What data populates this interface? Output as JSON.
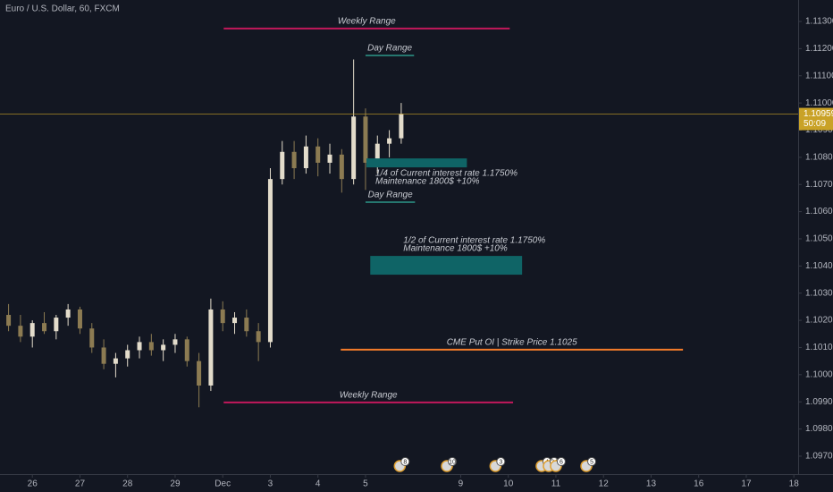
{
  "chart_data": {
    "type": "candlestick",
    "title": "Euro / U.S. Dollar, 60, FXCM",
    "up_color": "#e3dccb",
    "down_color": "#8c7b52",
    "x": [
      -0.5,
      -0.25,
      0,
      0.25,
      0.5,
      0.75,
      1,
      1.25,
      1.5,
      1.75,
      2,
      2.25,
      2.5,
      2.75,
      3,
      3.25,
      3.5,
      3.75,
      4,
      4.25,
      4.5,
      4.75,
      5,
      5.25,
      5.5,
      5.75,
      6,
      6.25,
      6.5,
      6.75,
      7,
      7.25,
      7.5,
      7.75
    ],
    "open": [
      1.1022,
      1.1018,
      1.1014,
      1.1019,
      1.1016,
      1.1021,
      1.1024,
      1.1017,
      1.101,
      1.1004,
      1.1006,
      1.1009,
      1.1012,
      1.1009,
      1.1011,
      1.1013,
      1.1005,
      1.0996,
      1.1024,
      1.1019,
      1.1021,
      1.1016,
      1.1012,
      1.1072,
      1.1082,
      1.1076,
      1.1084,
      1.1078,
      1.1081,
      1.1072,
      1.1095,
      1.1078,
      1.1085,
      1.1087
    ],
    "high": [
      1.1026,
      1.1022,
      1.102,
      1.1023,
      1.1022,
      1.1026,
      1.1025,
      1.1019,
      1.1013,
      1.1008,
      1.1011,
      1.1014,
      1.1015,
      1.1013,
      1.1015,
      1.1014,
      1.1008,
      1.1028,
      1.1027,
      1.1023,
      1.1024,
      1.1019,
      1.1076,
      1.1086,
      1.1086,
      1.1088,
      1.1087,
      1.1085,
      1.1083,
      1.1116,
      1.1098,
      1.1088,
      1.109,
      1.11
    ],
    "low": [
      1.1016,
      1.1012,
      1.101,
      1.1015,
      1.1013,
      1.1018,
      1.1015,
      1.1008,
      1.1002,
      1.0999,
      1.1003,
      1.1006,
      1.1007,
      1.1005,
      1.1008,
      1.1003,
      1.0988,
      1.0994,
      1.1016,
      1.1015,
      1.1014,
      1.1005,
      1.101,
      1.107,
      1.1072,
      1.1074,
      1.1073,
      1.1074,
      1.1067,
      1.107,
      1.1068,
      1.1074,
      1.108,
      1.1085
    ],
    "close": [
      1.1018,
      1.1014,
      1.1019,
      1.1016,
      1.1021,
      1.1024,
      1.1017,
      1.101,
      1.1004,
      1.1006,
      1.1009,
      1.1012,
      1.1009,
      1.1011,
      1.1013,
      1.1005,
      1.0996,
      1.1024,
      1.1019,
      1.1021,
      1.1016,
      1.1012,
      1.1072,
      1.1082,
      1.1076,
      1.1084,
      1.1078,
      1.1081,
      1.1072,
      1.1095,
      1.1078,
      1.1085,
      1.1087,
      1.1096
    ],
    "xlim": [
      -0.68,
      16.09
    ],
    "ylim": [
      1.09634,
      1.11379
    ],
    "xticks": [
      {
        "value": 0,
        "label": "26"
      },
      {
        "value": 1,
        "label": "27"
      },
      {
        "value": 2,
        "label": "28"
      },
      {
        "value": 3,
        "label": "29"
      },
      {
        "value": 4,
        "label": "Dec"
      },
      {
        "value": 5,
        "label": "3"
      },
      {
        "value": 6,
        "label": "4"
      },
      {
        "value": 7,
        "label": "5"
      },
      9,
      10,
      11,
      12,
      13,
      {
        "value": 14,
        "label": "16"
      },
      {
        "value": 15,
        "label": "17"
      },
      {
        "value": 16,
        "label": "18"
      }
    ],
    "yticks": [
      {
        "value": 1.113,
        "label": "1.11300"
      },
      {
        "value": 1.112,
        "label": "1.11200"
      },
      {
        "value": 1.111,
        "label": "1.11100"
      },
      {
        "value": 1.11,
        "label": "1.11000"
      },
      {
        "value": 1.109,
        "label": "1.10900"
      },
      {
        "value": 1.108,
        "label": "1.10800"
      },
      {
        "value": 1.107,
        "label": "1.10700"
      },
      {
        "value": 1.106,
        "label": "1.10600"
      },
      {
        "value": 1.105,
        "label": "1.10500"
      },
      {
        "value": 1.104,
        "label": "1.10400"
      },
      {
        "value": 1.103,
        "label": "1.10300"
      },
      {
        "value": 1.102,
        "label": "1.10200"
      },
      {
        "value": 1.101,
        "label": "1.10100"
      },
      {
        "value": 1.1,
        "label": "1.10000"
      },
      {
        "value": 1.099,
        "label": "1.09900"
      },
      {
        "value": 1.098,
        "label": "1.09800"
      },
      {
        "value": 1.097,
        "label": "1.09700"
      }
    ],
    "last_price": {
      "value": 1.10959,
      "label": "1.10959",
      "countdown": "50:09",
      "color": "#c9a227"
    },
    "annotations": [
      {
        "kind": "line",
        "y": 1.11274,
        "x": [
          4.02,
          10.03
        ],
        "color": "#c2185b",
        "labels": [
          "Weekly Range"
        ],
        "label_pos": "above"
      },
      {
        "kind": "line",
        "y": 1.11175,
        "x": [
          7.0,
          8.02
        ],
        "color": "#26776f",
        "labels": [
          "Day Range"
        ],
        "label_pos": "above"
      },
      {
        "kind": "box",
        "y": [
          1.10796,
          1.10763
        ],
        "x": [
          7.02,
          9.13
        ],
        "color": "#0f6466",
        "labels": [
          "1/4 of Current interest rate 1.1750%",
          "Maintenance 1800$ +10%"
        ],
        "label_pos": "below"
      },
      {
        "kind": "line",
        "y": 1.10635,
        "x": [
          7.0,
          8.04
        ],
        "color": "#26776f",
        "labels": [
          "Day Range"
        ],
        "label_pos": "above"
      },
      {
        "kind": "box",
        "y": [
          1.10437,
          1.10368
        ],
        "x": [
          7.1,
          10.29
        ],
        "color": "#0f6466",
        "labels": [
          "1/2 of Current interest rate 1.1750%",
          "Maintenance 1800$ +10%"
        ],
        "label_pos": "above"
      },
      {
        "kind": "line",
        "y": 1.10092,
        "x": [
          6.48,
          13.67
        ],
        "color": "#f57c2a",
        "labels": [
          "CME Put OI | Strike Price 1.1025"
        ],
        "label_pos": "above"
      },
      {
        "kind": "line",
        "y": 1.09898,
        "x": [
          4.02,
          10.1
        ],
        "color": "#c2185b",
        "labels": [
          "Weekly Range"
        ],
        "label_pos": "above"
      }
    ],
    "events": [
      {
        "x": 7.72,
        "label": "8"
      },
      {
        "x": 8.71,
        "label": "10"
      },
      {
        "x": 9.73,
        "label": "3"
      },
      {
        "x": 10.7,
        "label": "4"
      },
      {
        "x": 10.85,
        "label": "24"
      },
      {
        "x": 11.0,
        "label": "6"
      },
      {
        "x": 11.64,
        "label": "5"
      }
    ]
  }
}
